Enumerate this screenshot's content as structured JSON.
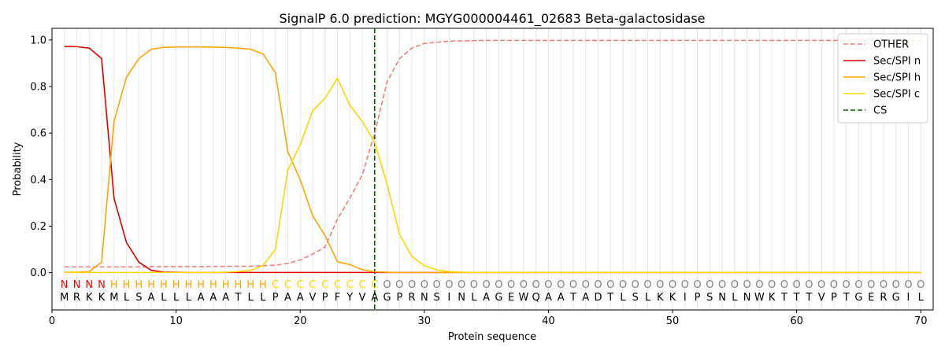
{
  "chart_data": {
    "type": "line",
    "title": "SignalP 6.0 prediction: MGYG000004461_02683 Beta-galactosidase",
    "xlabel": "Protein sequence",
    "ylabel": "Probability",
    "xlim": [
      0,
      71
    ],
    "ylim": [
      -0.16,
      1.05
    ],
    "xticks": [
      0,
      10,
      20,
      30,
      40,
      50,
      60,
      70
    ],
    "yticks": [
      0.0,
      0.2,
      0.4,
      0.6,
      0.8,
      1.0
    ],
    "xtick_labels": [
      "0",
      "10",
      "20",
      "30",
      "40",
      "50",
      "60",
      "70"
    ],
    "ytick_labels": [
      "0.0",
      "0.2",
      "0.4",
      "0.6",
      "0.8",
      "1.0"
    ],
    "grid": "vertical lines at each residue position",
    "legend_position": "top-right",
    "sequence": [
      "M",
      "R",
      "K",
      "K",
      "M",
      "L",
      "S",
      "A",
      "L",
      "L",
      "L",
      "A",
      "A",
      "A",
      "T",
      "L",
      "L",
      "P",
      "A",
      "A",
      "V",
      "P",
      "F",
      "Y",
      "V",
      "A",
      "G",
      "P",
      "R",
      "N",
      "S",
      "I",
      "N",
      "L",
      "A",
      "G",
      "E",
      "W",
      "Q",
      "A",
      "A",
      "T",
      "A",
      "D",
      "T",
      "L",
      "S",
      "L",
      "K",
      "K",
      "I",
      "P",
      "S",
      "N",
      "L",
      "N",
      "W",
      "K",
      "T",
      "T",
      "T",
      "V",
      "P",
      "T",
      "G",
      "E",
      "R",
      "G",
      "I",
      "L"
    ],
    "region_labels": [
      "N",
      "N",
      "N",
      "N",
      "H",
      "H",
      "H",
      "H",
      "H",
      "H",
      "H",
      "H",
      "H",
      "H",
      "H",
      "H",
      "H",
      "C",
      "C",
      "C",
      "C",
      "C",
      "C",
      "C",
      "C",
      "C",
      "O",
      "O",
      "O",
      "O",
      "O",
      "O",
      "O",
      "O",
      "O",
      "O",
      "O",
      "O",
      "O",
      "O",
      "O",
      "O",
      "O",
      "O",
      "O",
      "O",
      "O",
      "O",
      "O",
      "O",
      "O",
      "O",
      "O",
      "O",
      "O",
      "O",
      "O",
      "O",
      "O",
      "O",
      "O",
      "O",
      "O",
      "O",
      "O",
      "O",
      "O",
      "O",
      "O",
      "O"
    ],
    "region_colors": {
      "N": "#ff0000",
      "H": "#ffa500",
      "C": "#ffd700",
      "O": "#808080"
    },
    "series": [
      {
        "name": "OTHER",
        "color": "#f08080",
        "dash": "dashed",
        "values": [
          0.025,
          0.025,
          0.025,
          0.025,
          0.025,
          0.025,
          0.025,
          0.026,
          0.026,
          0.026,
          0.026,
          0.026,
          0.027,
          0.027,
          0.028,
          0.028,
          0.03,
          0.032,
          0.04,
          0.055,
          0.08,
          0.11,
          0.23,
          0.32,
          0.42,
          0.6,
          0.82,
          0.92,
          0.965,
          0.985,
          0.99,
          0.995,
          0.996,
          0.997,
          0.998,
          0.998,
          0.998,
          0.998,
          0.998,
          0.998,
          0.998,
          0.998,
          0.998,
          0.998,
          0.998,
          0.998,
          0.998,
          0.998,
          0.998,
          0.998,
          0.998,
          0.998,
          0.998,
          0.998,
          0.998,
          0.998,
          0.998,
          0.998,
          0.998,
          0.998,
          0.998,
          0.998,
          0.998,
          0.998,
          0.998,
          0.998,
          0.998,
          0.998,
          0.998,
          0.998
        ]
      },
      {
        "name": "Sec/SPI n",
        "color": "#e00000",
        "dash": "solid",
        "values": [
          0.972,
          0.971,
          0.965,
          0.92,
          0.32,
          0.13,
          0.045,
          0.01,
          0.003,
          0.002,
          0.001,
          0.001,
          0.001,
          0.001,
          0.001,
          0.001,
          0.001,
          0.001,
          0.001,
          0.001,
          0.001,
          0.001,
          0.001,
          0.001,
          0.001,
          0.001,
          0.001,
          0.001,
          0.001,
          0.001,
          0.001,
          0.001,
          0.001,
          0.001,
          0.001,
          0.001,
          0.001,
          0.001,
          0.001,
          0.001,
          0.001,
          0.001,
          0.001,
          0.001,
          0.001,
          0.001,
          0.001,
          0.001,
          0.001,
          0.001,
          0.001,
          0.001,
          0.001,
          0.001,
          0.001,
          0.001,
          0.001,
          0.001,
          0.001,
          0.001,
          0.001,
          0.001,
          0.001,
          0.001,
          0.001,
          0.001,
          0.001,
          0.001,
          0.001,
          0.001
        ]
      },
      {
        "name": "Sec/SPI h",
        "color": "#ffa500",
        "dash": "solid",
        "values": [
          0.002,
          0.002,
          0.005,
          0.045,
          0.65,
          0.84,
          0.92,
          0.96,
          0.968,
          0.97,
          0.97,
          0.97,
          0.969,
          0.968,
          0.965,
          0.96,
          0.94,
          0.86,
          0.52,
          0.4,
          0.245,
          0.16,
          0.047,
          0.035,
          0.013,
          0.004,
          0.002,
          0.001,
          0.001,
          0.001,
          0.001,
          0.001,
          0.001,
          0.001,
          0.001,
          0.001,
          0.001,
          0.001,
          0.001,
          0.001,
          0.001,
          0.001,
          0.001,
          0.001,
          0.001,
          0.001,
          0.001,
          0.001,
          0.001,
          0.001,
          0.001,
          0.001,
          0.001,
          0.001,
          0.001,
          0.001,
          0.001,
          0.001,
          0.001,
          0.001,
          0.001,
          0.001,
          0.001,
          0.001,
          0.001,
          0.001,
          0.001,
          0.001,
          0.001,
          0.001
        ]
      },
      {
        "name": "Sec/SPI c",
        "color": "#ffd700",
        "dash": "solid",
        "values": [
          0.001,
          0.001,
          0.001,
          0.001,
          0.001,
          0.001,
          0.001,
          0.001,
          0.001,
          0.001,
          0.001,
          0.001,
          0.001,
          0.002,
          0.005,
          0.01,
          0.03,
          0.1,
          0.44,
          0.55,
          0.695,
          0.75,
          0.835,
          0.72,
          0.65,
          0.56,
          0.38,
          0.165,
          0.07,
          0.03,
          0.012,
          0.005,
          0.002,
          0.001,
          0.001,
          0.001,
          0.001,
          0.001,
          0.001,
          0.001,
          0.001,
          0.001,
          0.001,
          0.001,
          0.001,
          0.001,
          0.001,
          0.001,
          0.001,
          0.001,
          0.001,
          0.001,
          0.001,
          0.001,
          0.001,
          0.001,
          0.001,
          0.001,
          0.001,
          0.001,
          0.001,
          0.001,
          0.001,
          0.001,
          0.001,
          0.001,
          0.001,
          0.001,
          0.001,
          0.001
        ]
      }
    ],
    "cs_line": {
      "name": "CS",
      "x": 26,
      "color": "#006400",
      "dash": "dashed"
    }
  }
}
